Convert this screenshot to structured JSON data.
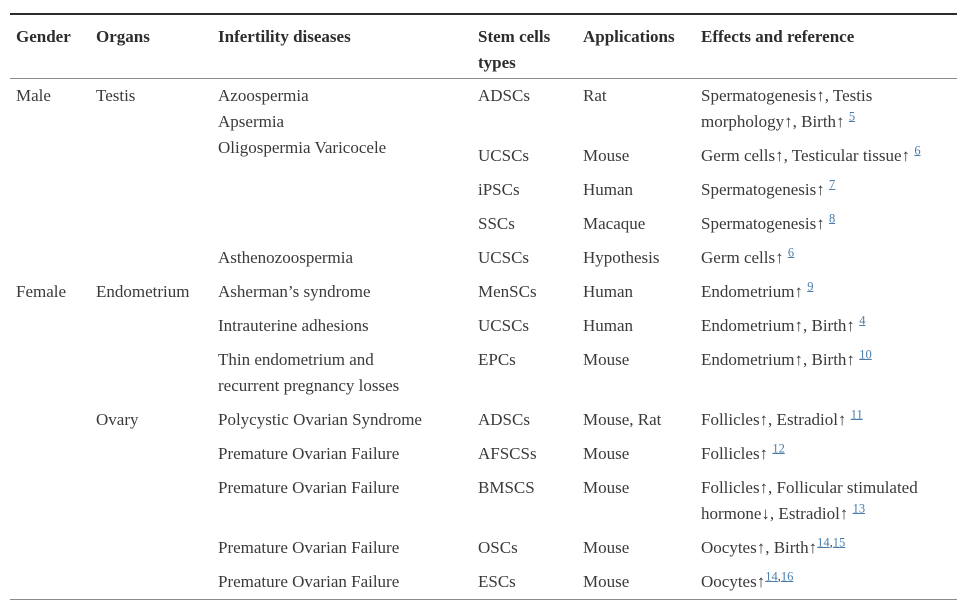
{
  "colors": {
    "text": "#3a3a3a",
    "header_text": "#2d2d2d",
    "link": "#4a7dab",
    "top_border": "#2d2d2d",
    "rule": "#8b8b8b"
  },
  "table": {
    "headers": [
      {
        "lines": [
          "Gender"
        ]
      },
      {
        "lines": [
          "Organs"
        ]
      },
      {
        "lines": [
          "Infertility diseases"
        ]
      },
      {
        "lines": [
          "Stem cells",
          "types"
        ]
      },
      {
        "lines": [
          "Applications"
        ]
      },
      {
        "lines": [
          "Effects and reference"
        ]
      }
    ],
    "rows": [
      {
        "gender": "Male",
        "organs": "Testis",
        "disease_lines": [
          "Azoospermia",
          "Apsermia",
          "Oligospermia Varicocele"
        ],
        "stem_cells": "ADSCs",
        "applications": "Rat",
        "effects": {
          "lines": [
            "Spermatogenesis↑, Testis",
            "morphology↑, Birth↑"
          ],
          "space": " ",
          "refs": [
            "5"
          ]
        }
      },
      {
        "stem_cells": "UCSCs",
        "applications": "Mouse",
        "effects": {
          "lines": [
            "Germ cells↑, Testicular tissue↑"
          ],
          "space": " ",
          "refs": [
            "6"
          ]
        }
      },
      {
        "stem_cells": "iPSCs",
        "applications": "Human",
        "effects": {
          "lines": [
            "Spermatogenesis↑"
          ],
          "space": " ",
          "refs": [
            "7"
          ]
        }
      },
      {
        "stem_cells": "SSCs",
        "applications": "Macaque",
        "effects": {
          "lines": [
            "Spermatogenesis↑"
          ],
          "space": " ",
          "refs": [
            "8"
          ]
        }
      },
      {
        "disease_lines": [
          "Asthenozoospermia"
        ],
        "stem_cells": "UCSCs",
        "applications": "Hypothesis",
        "effects": {
          "lines": [
            "Germ cells↑"
          ],
          "space": " ",
          "refs": [
            "6"
          ]
        }
      },
      {
        "gender": "Female",
        "organs": "Endometrium",
        "disease_lines": [
          "Asherman’s syndrome"
        ],
        "stem_cells": "MenSCs",
        "applications": "Human",
        "effects": {
          "lines": [
            "Endometrium↑"
          ],
          "space": " ",
          "refs": [
            "9"
          ]
        }
      },
      {
        "disease_lines": [
          "Intrauterine adhesions"
        ],
        "stem_cells": "UCSCs",
        "applications": "Human",
        "effects": {
          "lines": [
            "Endometrium↑, Birth↑"
          ],
          "space": " ",
          "refs": [
            "4"
          ]
        }
      },
      {
        "disease_lines": [
          "Thin endometrium and",
          "recurrent pregnancy losses"
        ],
        "stem_cells": "EPCs",
        "applications": "Mouse",
        "effects": {
          "lines": [
            "Endometrium↑, Birth↑"
          ],
          "space": " ",
          "refs": [
            "10"
          ]
        }
      },
      {
        "organs": "Ovary",
        "disease_lines": [
          "Polycystic Ovarian Syndrome"
        ],
        "stem_cells": "ADSCs",
        "applications": "Mouse, Rat",
        "effects": {
          "lines": [
            "Follicles↑, Estradiol↑"
          ],
          "space": " ",
          "refs": [
            "11"
          ]
        }
      },
      {
        "disease_lines": [
          "Premature Ovarian Failure"
        ],
        "stem_cells": "AFSCSs",
        "applications": "Mouse",
        "effects": {
          "lines": [
            "Follicles↑"
          ],
          "space": " ",
          "refs": [
            "12"
          ]
        }
      },
      {
        "disease_lines": [
          "Premature Ovarian Failure"
        ],
        "stem_cells": "BMSCS",
        "applications": "Mouse",
        "effects": {
          "lines": [
            "Follicles↑, Follicular stimulated",
            "hormone↓, Estradiol↑"
          ],
          "space": " ",
          "refs": [
            "13"
          ]
        }
      },
      {
        "disease_lines": [
          "Premature Ovarian Failure"
        ],
        "stem_cells": "OSCs",
        "applications": "Mouse",
        "effects": {
          "lines": [
            "Oocytes↑, Birth↑"
          ],
          "space": "",
          "refs": [
            "14",
            "15"
          ]
        }
      },
      {
        "disease_lines": [
          "Premature Ovarian Failure"
        ],
        "stem_cells": "ESCs",
        "applications": "Mouse",
        "effects": {
          "lines": [
            "Oocytes↑"
          ],
          "space": "",
          "refs": [
            "14",
            "16"
          ]
        }
      }
    ]
  }
}
